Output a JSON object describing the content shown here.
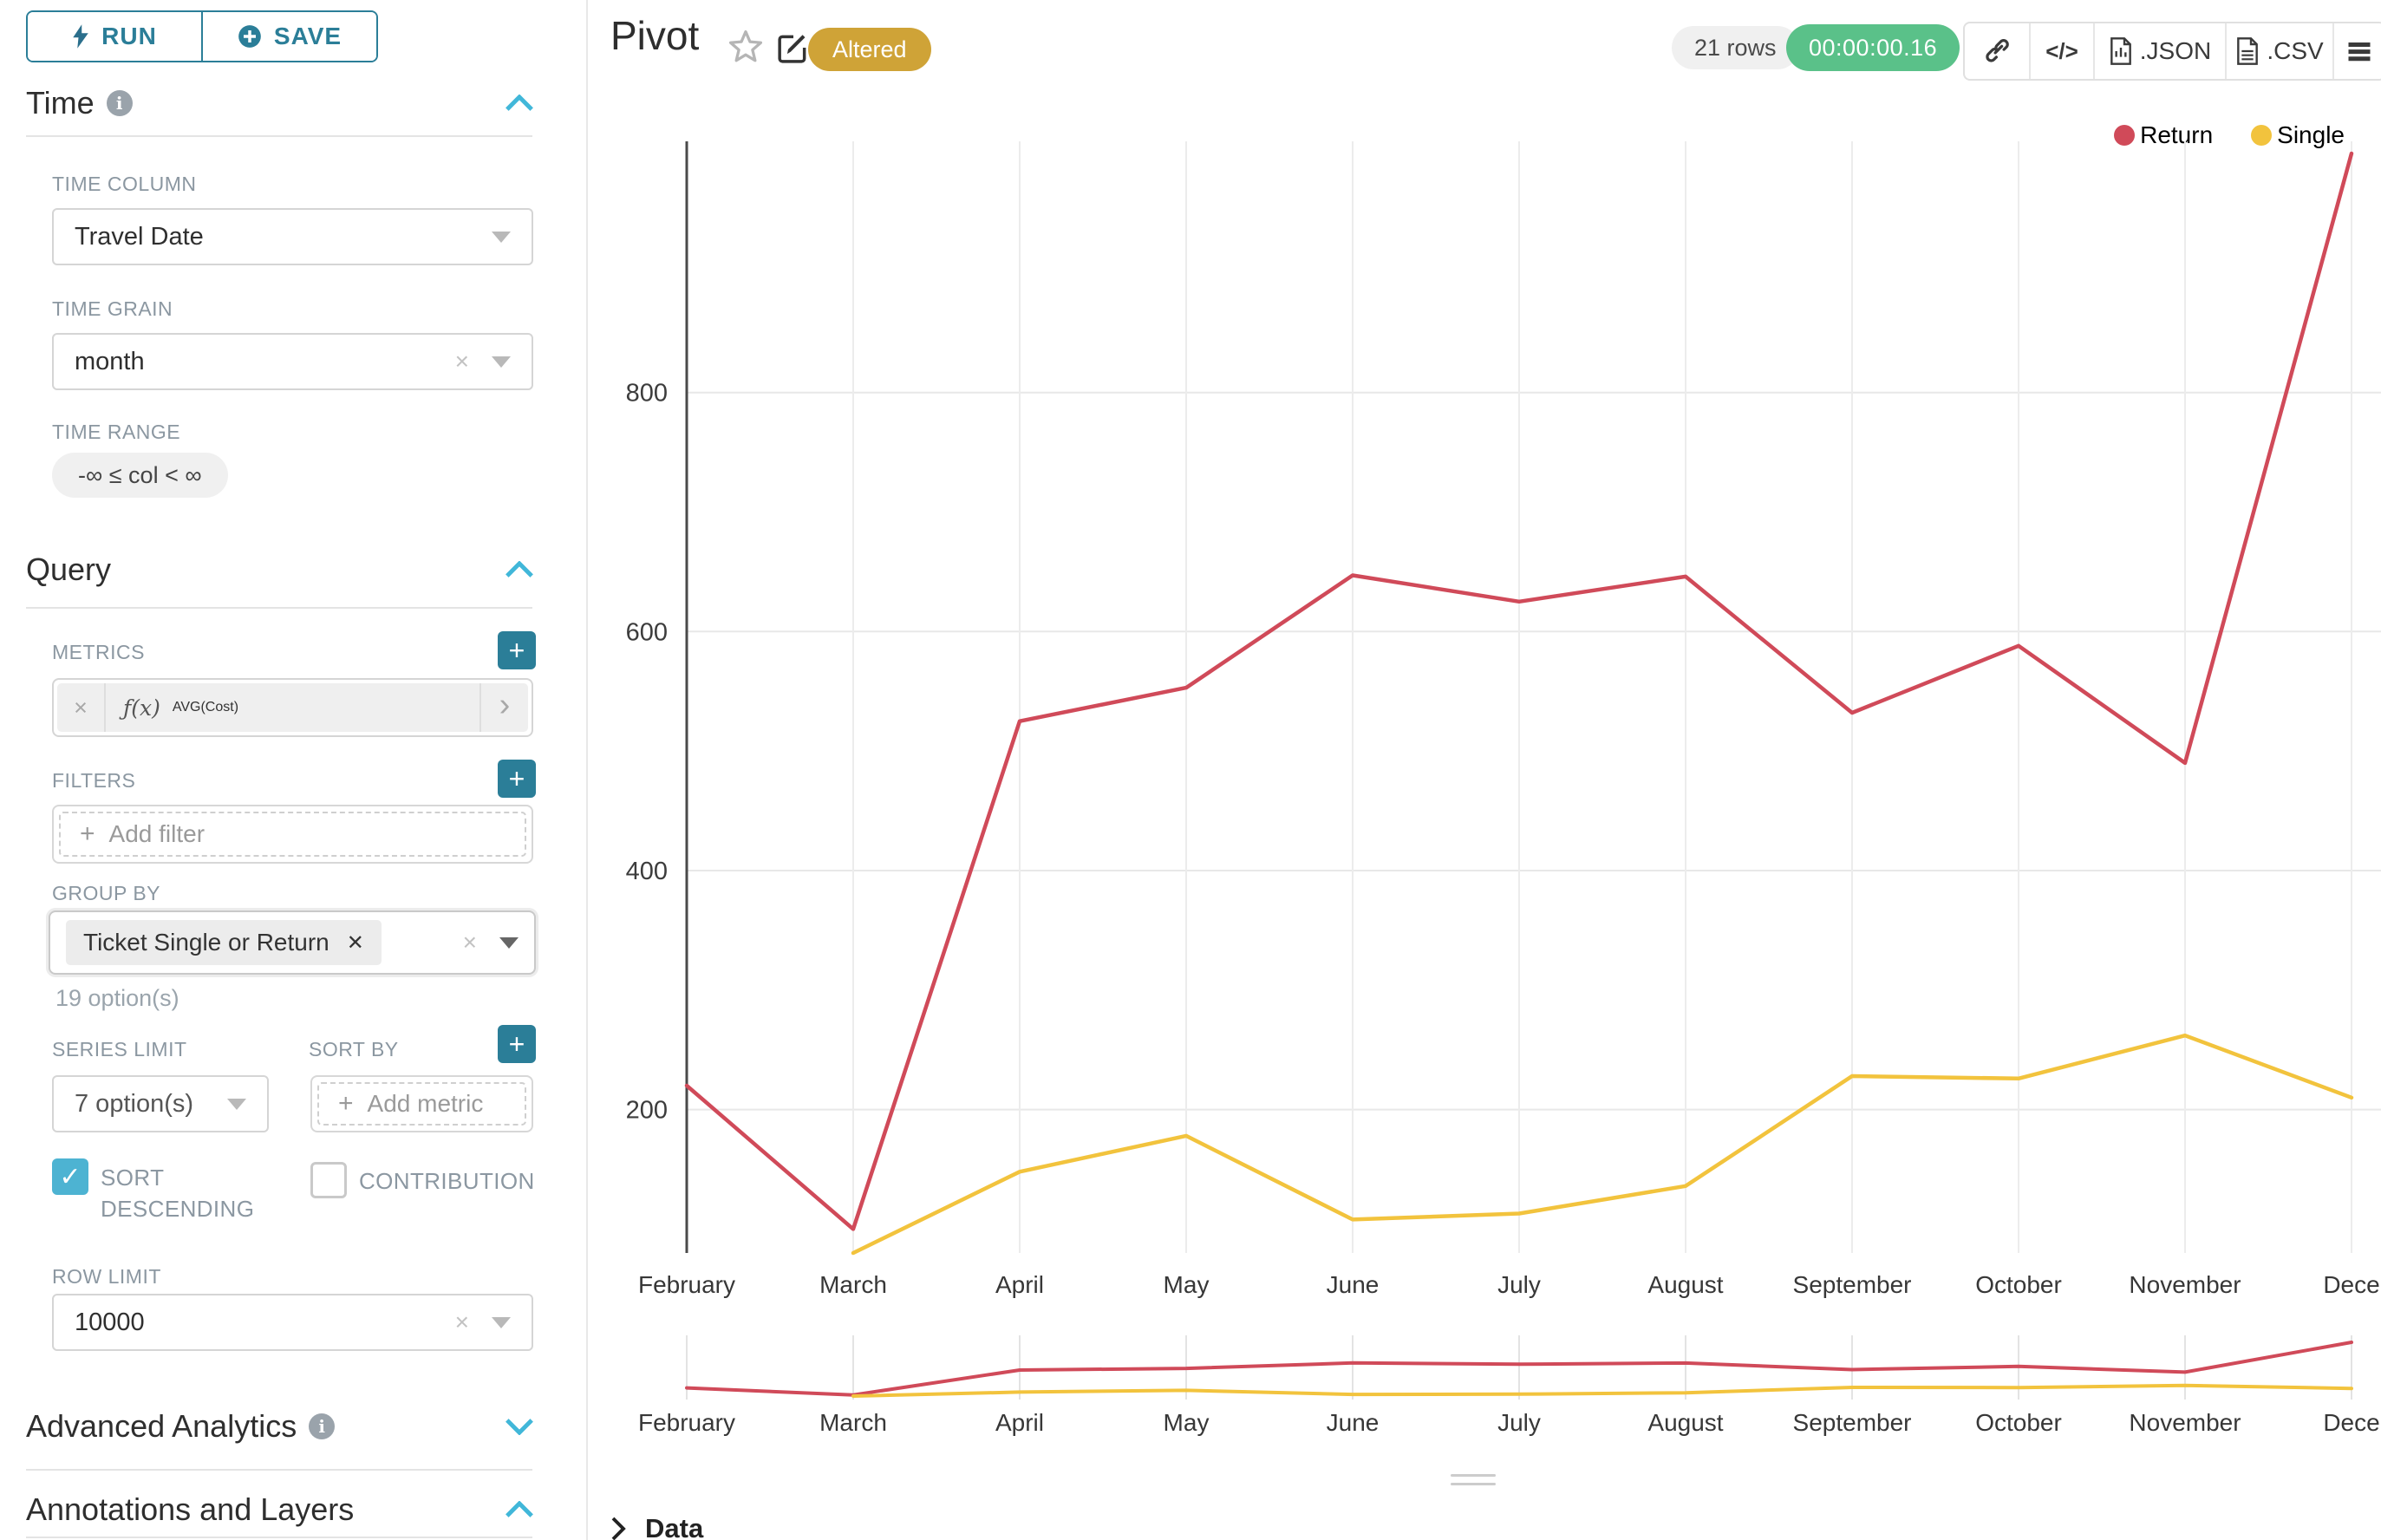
{
  "colors": {
    "accent_teal": "#2b7e98",
    "checkbox_teal": "#4db3d2",
    "caret_blue": "#41b7d9",
    "badge_gold": "#cfa337",
    "timer_green": "#5ac189",
    "return_red": "#d04a59",
    "single_yellow": "#f2c33d"
  },
  "sidebar": {
    "run_label": "RUN",
    "save_label": "SAVE",
    "time_section": {
      "title": "Time",
      "time_column": {
        "label": "TIME COLUMN",
        "value": "Travel Date"
      },
      "time_grain": {
        "label": "TIME GRAIN",
        "value": "month"
      },
      "time_range": {
        "label": "TIME RANGE",
        "value": "-∞ ≤ col < ∞"
      }
    },
    "query_section": {
      "title": "Query",
      "metrics": {
        "label": "METRICS",
        "fx": "ƒ(x)",
        "value": "AVG(Cost)"
      },
      "filters": {
        "label": "FILTERS",
        "placeholder": "Add filter"
      },
      "group_by": {
        "label": "GROUP BY",
        "tag": "Ticket Single or Return",
        "hint": "19 option(s)"
      },
      "series_limit": {
        "label": "SERIES LIMIT",
        "value": "7 option(s)"
      },
      "sort_by": {
        "label": "SORT BY",
        "placeholder": "Add metric"
      },
      "sort_descending": {
        "label": "SORT DESCENDING",
        "checked": true
      },
      "contribution": {
        "label": "CONTRIBUTION",
        "checked": false
      },
      "row_limit": {
        "label": "ROW LIMIT",
        "value": "10000"
      }
    },
    "advanced_section": {
      "title": "Advanced Analytics"
    },
    "annotations_section": {
      "title": "Annotations and Layers"
    }
  },
  "header": {
    "title": "Pivot",
    "badge": "Altered",
    "rows_badge": "21 rows",
    "timer": "00:00:00.16",
    "export_json": ".JSON",
    "export_csv": ".CSV"
  },
  "data_panel": {
    "label": "Data"
  },
  "chart_data": {
    "type": "line",
    "title": "",
    "xlabel": "",
    "ylabel": "",
    "categories": [
      "February",
      "March",
      "April",
      "May",
      "June",
      "July",
      "August",
      "September",
      "October",
      "November",
      "December"
    ],
    "tick_labels": [
      "February",
      "March",
      "April",
      "May",
      "June",
      "July",
      "August",
      "September",
      "October",
      "November",
      "Dece"
    ],
    "series": [
      {
        "name": "Return",
        "color": "#d04a59",
        "values": [
          220,
          100,
          525,
          553,
          647,
          625,
          646,
          532,
          588,
          490,
          1000
        ]
      },
      {
        "name": "Single",
        "color": "#f2c33d",
        "values": [
          null,
          80,
          148,
          178,
          108,
          113,
          136,
          228,
          226,
          262,
          210
        ]
      }
    ],
    "y_ticks": [
      200,
      400,
      600,
      800
    ],
    "ylim": [
      80,
      1000
    ],
    "grid": true,
    "legend_position": "top-right",
    "brush": true
  }
}
